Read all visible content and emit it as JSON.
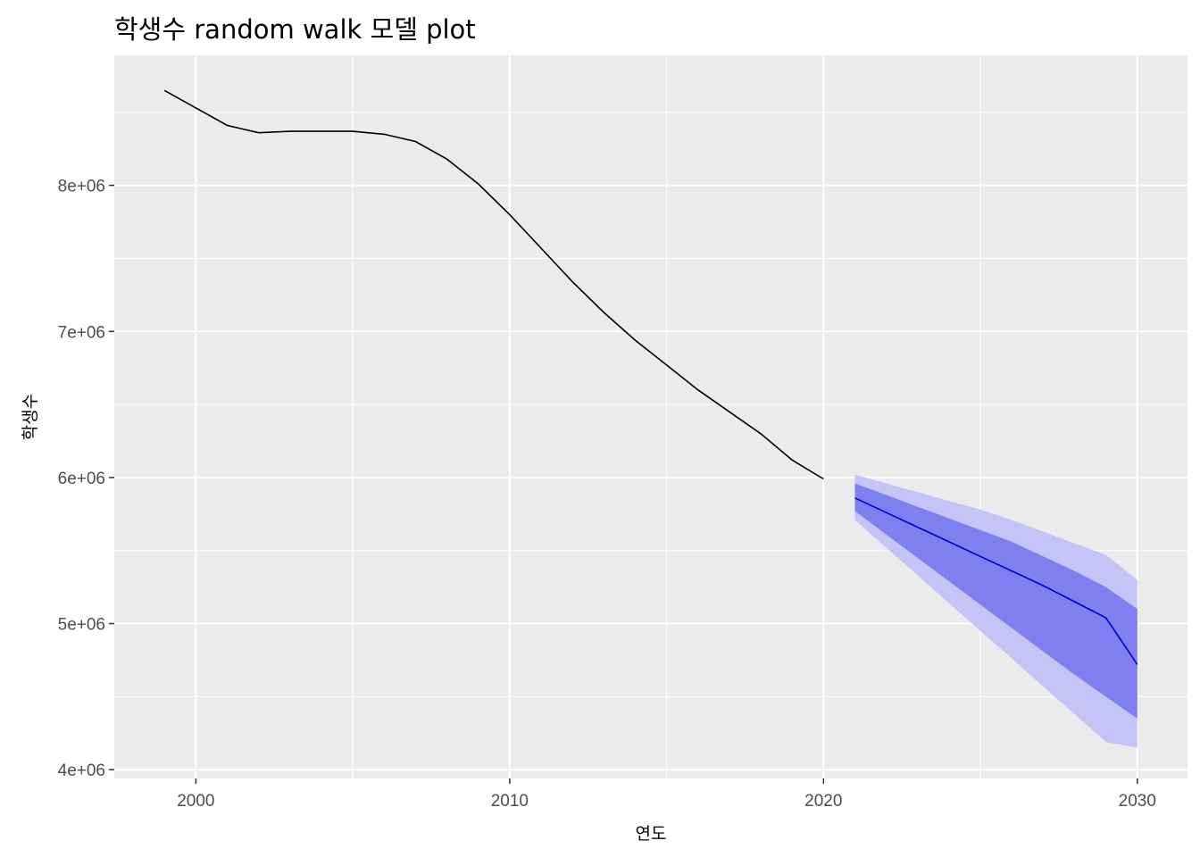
{
  "chart_data": {
    "type": "line",
    "title": "학생수 random walk 모델 plot",
    "xlabel": "연도",
    "ylabel": "학생수",
    "xlim": [
      1997.4,
      2031.6
    ],
    "ylim": [
      3940000,
      8890000
    ],
    "x_ticks": [
      2000,
      2010,
      2020,
      2030
    ],
    "x_tick_labels": [
      "2000",
      "2010",
      "2020",
      "2030"
    ],
    "y_ticks": [
      4000000,
      5000000,
      6000000,
      7000000,
      8000000
    ],
    "y_tick_labels": [
      "4e+06",
      "5e+06",
      "6e+06",
      "7e+06",
      "8e+06"
    ],
    "grid": true,
    "legend": "none",
    "series": [
      {
        "color": "#000000",
        "x": [
          1999,
          2000,
          2001,
          2002,
          2003,
          2004,
          2005,
          2006,
          2007,
          2008,
          2009,
          2010,
          2011,
          2012,
          2013,
          2014,
          2015,
          2016,
          2017,
          2018,
          2019,
          2020
        ],
        "values": [
          8650000,
          8530000,
          8410000,
          8360000,
          8370000,
          8370000,
          8370000,
          8350000,
          8300000,
          8180000,
          8010000,
          7800000,
          7570000,
          7340000,
          7130000,
          6940000,
          6770000,
          6600000,
          6450000,
          6300000,
          6120000,
          5990000
        ]
      }
    ],
    "forecast": {
      "line_color": "#0000cc",
      "band80_color": "#7f7ff0",
      "band95_color": "#c4c4f7",
      "x": [
        2021,
        2022,
        2023,
        2024,
        2025,
        2026,
        2027,
        2028,
        2029,
        2030
      ],
      "mean": [
        5860000,
        5760000,
        5660000,
        5560000,
        5460000,
        5360000,
        5260000,
        5150000,
        5040000,
        4720000
      ],
      "lo80": [
        5770000,
        5610000,
        5450000,
        5290000,
        5130000,
        4970000,
        4810000,
        4650000,
        4500000,
        4350000
      ],
      "hi80": [
        5960000,
        5880000,
        5800000,
        5720000,
        5640000,
        5560000,
        5460000,
        5360000,
        5250000,
        5100000
      ],
      "lo95": [
        5710000,
        5520000,
        5330000,
        5140000,
        4950000,
        4760000,
        4570000,
        4380000,
        4190000,
        4150000
      ],
      "hi95": [
        6020000,
        5960000,
        5900000,
        5840000,
        5780000,
        5710000,
        5630000,
        5550000,
        5470000,
        5300000
      ]
    }
  }
}
